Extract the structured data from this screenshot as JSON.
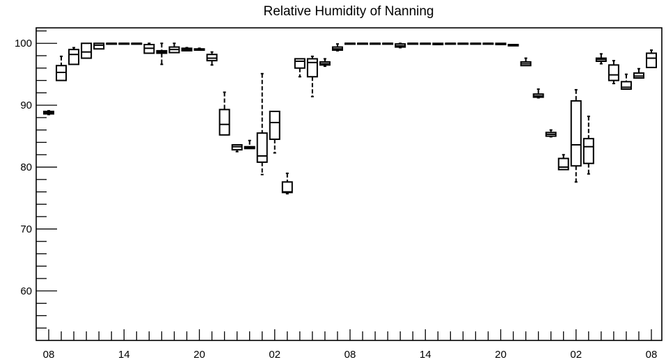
{
  "chart_data": {
    "type": "boxplot",
    "title": "Relative Humidity of Nanning",
    "xlabel": "",
    "ylabel": "",
    "ylim": [
      52,
      102.5
    ],
    "y_ticks": [
      60,
      70,
      80,
      90,
      100
    ],
    "y_tick_labels": [
      "60",
      "70",
      "80",
      "90",
      "100"
    ],
    "x_tick_labels": [
      {
        "label": "08",
        "slot": 0
      },
      {
        "label": "14",
        "slot": 6
      },
      {
        "label": "20",
        "slot": 12
      },
      {
        "label": "02",
        "slot": 18
      },
      {
        "label": "08",
        "slot": 24
      },
      {
        "label": "14",
        "slot": 30
      },
      {
        "label": "20",
        "slot": 36
      },
      {
        "label": "02",
        "slot": 42
      },
      {
        "label": "08",
        "slot": 48
      }
    ],
    "slot_count": 49,
    "boxes": [
      {
        "slot": 0,
        "q1": 88.6,
        "median": 88.8,
        "q3": 89.0,
        "whisker_low": 88.5,
        "whisker_high": 89.1
      },
      {
        "slot": 1,
        "q1": 94.0,
        "median": 95.3,
        "q3": 96.4,
        "whisker_low": 94.0,
        "whisker_high": 97.9
      },
      {
        "slot": 2,
        "q1": 96.6,
        "median": 98.2,
        "q3": 99.0,
        "whisker_low": 96.6,
        "whisker_high": 99.3
      },
      {
        "slot": 3,
        "q1": 97.6,
        "median": 98.6,
        "q3": 100.0,
        "whisker_low": 97.6,
        "whisker_high": 100.0
      },
      {
        "slot": 4,
        "q1": 99.1,
        "median": 99.7,
        "q3": 100.0,
        "whisker_low": 99.1,
        "whisker_high": 100.0
      },
      {
        "slot": 5,
        "q1": 100.0,
        "median": 100.0,
        "q3": 100.0,
        "whisker_low": 100.0,
        "whisker_high": 100.0
      },
      {
        "slot": 6,
        "q1": 100.0,
        "median": 100.0,
        "q3": 100.0,
        "whisker_low": 100.0,
        "whisker_high": 100.0
      },
      {
        "slot": 7,
        "q1": 100.0,
        "median": 100.0,
        "q3": 100.0,
        "whisker_low": 100.0,
        "whisker_high": 100.0
      },
      {
        "slot": 8,
        "q1": 98.4,
        "median": 99.2,
        "q3": 99.8,
        "whisker_low": 98.4,
        "whisker_high": 100.0
      },
      {
        "slot": 9,
        "q1": 98.4,
        "median": 98.6,
        "q3": 98.8,
        "whisker_low": 96.6,
        "whisker_high": 100.0
      },
      {
        "slot": 10,
        "q1": 98.5,
        "median": 99.0,
        "q3": 99.4,
        "whisker_low": 98.5,
        "whisker_high": 100.0
      },
      {
        "slot": 11,
        "q1": 98.8,
        "median": 99.0,
        "q3": 99.2,
        "whisker_low": 98.8,
        "whisker_high": 99.3
      },
      {
        "slot": 12,
        "q1": 98.9,
        "median": 99.0,
        "q3": 99.1,
        "whisker_low": 98.9,
        "whisker_high": 99.2
      },
      {
        "slot": 13,
        "q1": 97.2,
        "median": 97.6,
        "q3": 98.2,
        "whisker_low": 96.5,
        "whisker_high": 98.6
      },
      {
        "slot": 14,
        "q1": 85.2,
        "median": 86.9,
        "q3": 89.3,
        "whisker_low": 85.2,
        "whisker_high": 92.1
      },
      {
        "slot": 15,
        "q1": 82.8,
        "median": 83.3,
        "q3": 83.6,
        "whisker_low": 82.5,
        "whisker_high": 83.6
      },
      {
        "slot": 16,
        "q1": 83.0,
        "median": 83.1,
        "q3": 83.3,
        "whisker_low": 83.0,
        "whisker_high": 84.3
      },
      {
        "slot": 17,
        "q1": 80.8,
        "median": 81.8,
        "q3": 85.5,
        "whisker_low": 78.8,
        "whisker_high": 95.1
      },
      {
        "slot": 18,
        "q1": 84.5,
        "median": 87.2,
        "q3": 89.0,
        "whisker_low": 82.3,
        "whisker_high": 89.0
      },
      {
        "slot": 19,
        "q1": 75.9,
        "median": 76.0,
        "q3": 77.6,
        "whisker_low": 75.7,
        "whisker_high": 79.0
      },
      {
        "slot": 20,
        "q1": 96.0,
        "median": 97.1,
        "q3": 97.5,
        "whisker_low": 94.6,
        "whisker_high": 97.5
      },
      {
        "slot": 21,
        "q1": 94.6,
        "median": 96.9,
        "q3": 97.5,
        "whisker_low": 91.4,
        "whisker_high": 97.9
      },
      {
        "slot": 22,
        "q1": 96.5,
        "median": 96.7,
        "q3": 97.0,
        "whisker_low": 96.3,
        "whisker_high": 97.5
      },
      {
        "slot": 23,
        "q1": 98.9,
        "median": 99.1,
        "q3": 99.4,
        "whisker_low": 98.8,
        "whisker_high": 99.9
      },
      {
        "slot": 24,
        "q1": 100.0,
        "median": 100.0,
        "q3": 100.0,
        "whisker_low": 100.0,
        "whisker_high": 100.0
      },
      {
        "slot": 25,
        "q1": 100.0,
        "median": 100.0,
        "q3": 100.0,
        "whisker_low": 100.0,
        "whisker_high": 100.0
      },
      {
        "slot": 26,
        "q1": 100.0,
        "median": 100.0,
        "q3": 100.0,
        "whisker_low": 100.0,
        "whisker_high": 100.0
      },
      {
        "slot": 27,
        "q1": 100.0,
        "median": 100.0,
        "q3": 100.0,
        "whisker_low": 100.0,
        "whisker_high": 100.0
      },
      {
        "slot": 28,
        "q1": 99.4,
        "median": 99.6,
        "q3": 99.9,
        "whisker_low": 99.3,
        "whisker_high": 100.0
      },
      {
        "slot": 29,
        "q1": 100.0,
        "median": 100.0,
        "q3": 100.0,
        "whisker_low": 100.0,
        "whisker_high": 100.0
      },
      {
        "slot": 30,
        "q1": 100.0,
        "median": 100.0,
        "q3": 100.0,
        "whisker_low": 100.0,
        "whisker_high": 100.0
      },
      {
        "slot": 31,
        "q1": 99.8,
        "median": 99.9,
        "q3": 100.0,
        "whisker_low": 99.8,
        "whisker_high": 100.0
      },
      {
        "slot": 32,
        "q1": 100.0,
        "median": 100.0,
        "q3": 100.0,
        "whisker_low": 100.0,
        "whisker_high": 100.0
      },
      {
        "slot": 33,
        "q1": 100.0,
        "median": 100.0,
        "q3": 100.0,
        "whisker_low": 100.0,
        "whisker_high": 100.0
      },
      {
        "slot": 34,
        "q1": 100.0,
        "median": 100.0,
        "q3": 100.0,
        "whisker_low": 100.0,
        "whisker_high": 100.0
      },
      {
        "slot": 35,
        "q1": 100.0,
        "median": 100.0,
        "q3": 100.0,
        "whisker_low": 100.0,
        "whisker_high": 100.0
      },
      {
        "slot": 36,
        "q1": 99.8,
        "median": 99.9,
        "q3": 100.0,
        "whisker_low": 99.8,
        "whisker_high": 100.0
      },
      {
        "slot": 37,
        "q1": 99.6,
        "median": 99.7,
        "q3": 99.8,
        "whisker_low": 99.6,
        "whisker_high": 99.8
      },
      {
        "slot": 38,
        "q1": 96.4,
        "median": 96.7,
        "q3": 97.0,
        "whisker_low": 96.4,
        "whisker_high": 97.6
      },
      {
        "slot": 39,
        "q1": 91.3,
        "median": 91.5,
        "q3": 91.8,
        "whisker_low": 91.2,
        "whisker_high": 92.6
      },
      {
        "slot": 40,
        "q1": 85.0,
        "median": 85.3,
        "q3": 85.6,
        "whisker_low": 84.9,
        "whisker_high": 86.0
      },
      {
        "slot": 41,
        "q1": 79.6,
        "median": 80.0,
        "q3": 81.4,
        "whisker_low": 79.6,
        "whisker_high": 82.0
      },
      {
        "slot": 42,
        "q1": 80.2,
        "median": 83.6,
        "q3": 90.7,
        "whisker_low": 77.6,
        "whisker_high": 92.5
      },
      {
        "slot": 43,
        "q1": 80.6,
        "median": 83.3,
        "q3": 84.6,
        "whisker_low": 78.9,
        "whisker_high": 88.2
      },
      {
        "slot": 44,
        "q1": 97.1,
        "median": 97.4,
        "q3": 97.6,
        "whisker_low": 96.7,
        "whisker_high": 98.3
      },
      {
        "slot": 45,
        "q1": 94.0,
        "median": 94.9,
        "q3": 96.5,
        "whisker_low": 93.5,
        "whisker_high": 97.2
      },
      {
        "slot": 46,
        "q1": 92.6,
        "median": 92.9,
        "q3": 93.8,
        "whisker_low": 92.6,
        "whisker_high": 95.0
      },
      {
        "slot": 47,
        "q1": 94.4,
        "median": 94.7,
        "q3": 95.2,
        "whisker_low": 94.4,
        "whisker_high": 95.9
      },
      {
        "slot": 48,
        "q1": 96.1,
        "median": 97.6,
        "q3": 98.4,
        "whisker_low": 96.1,
        "whisker_high": 98.9
      }
    ],
    "grid": false,
    "legend": "none"
  }
}
